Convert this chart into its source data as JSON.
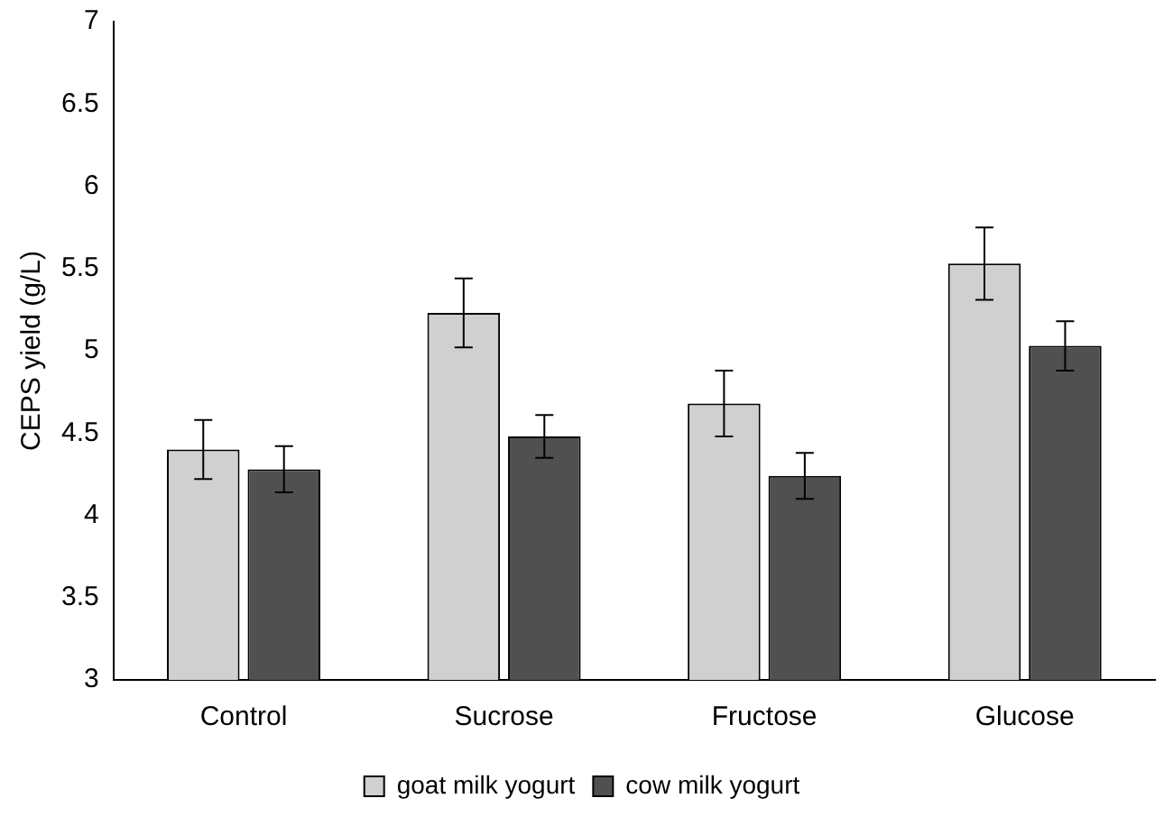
{
  "chart_data": {
    "type": "bar",
    "ylabel": "CEPS yield (g/L)",
    "categories": [
      "Control",
      "Sucrose",
      "Fructose",
      "Glucose"
    ],
    "series": [
      {
        "name": "goat milk yogurt",
        "color": "#d0d0d0",
        "values": [
          4.4,
          5.23,
          4.68,
          5.53
        ],
        "errors": [
          0.18,
          0.21,
          0.2,
          0.22
        ]
      },
      {
        "name": "cow milk yogurt",
        "color": "#505050",
        "values": [
          4.28,
          4.48,
          4.24,
          5.03
        ],
        "errors": [
          0.14,
          0.13,
          0.14,
          0.15
        ]
      }
    ],
    "ylim": [
      3,
      7
    ],
    "yticks": [
      3,
      3.5,
      4,
      4.5,
      5,
      5.5,
      6,
      6.5,
      7
    ],
    "grid": false,
    "legend": "bottom"
  }
}
